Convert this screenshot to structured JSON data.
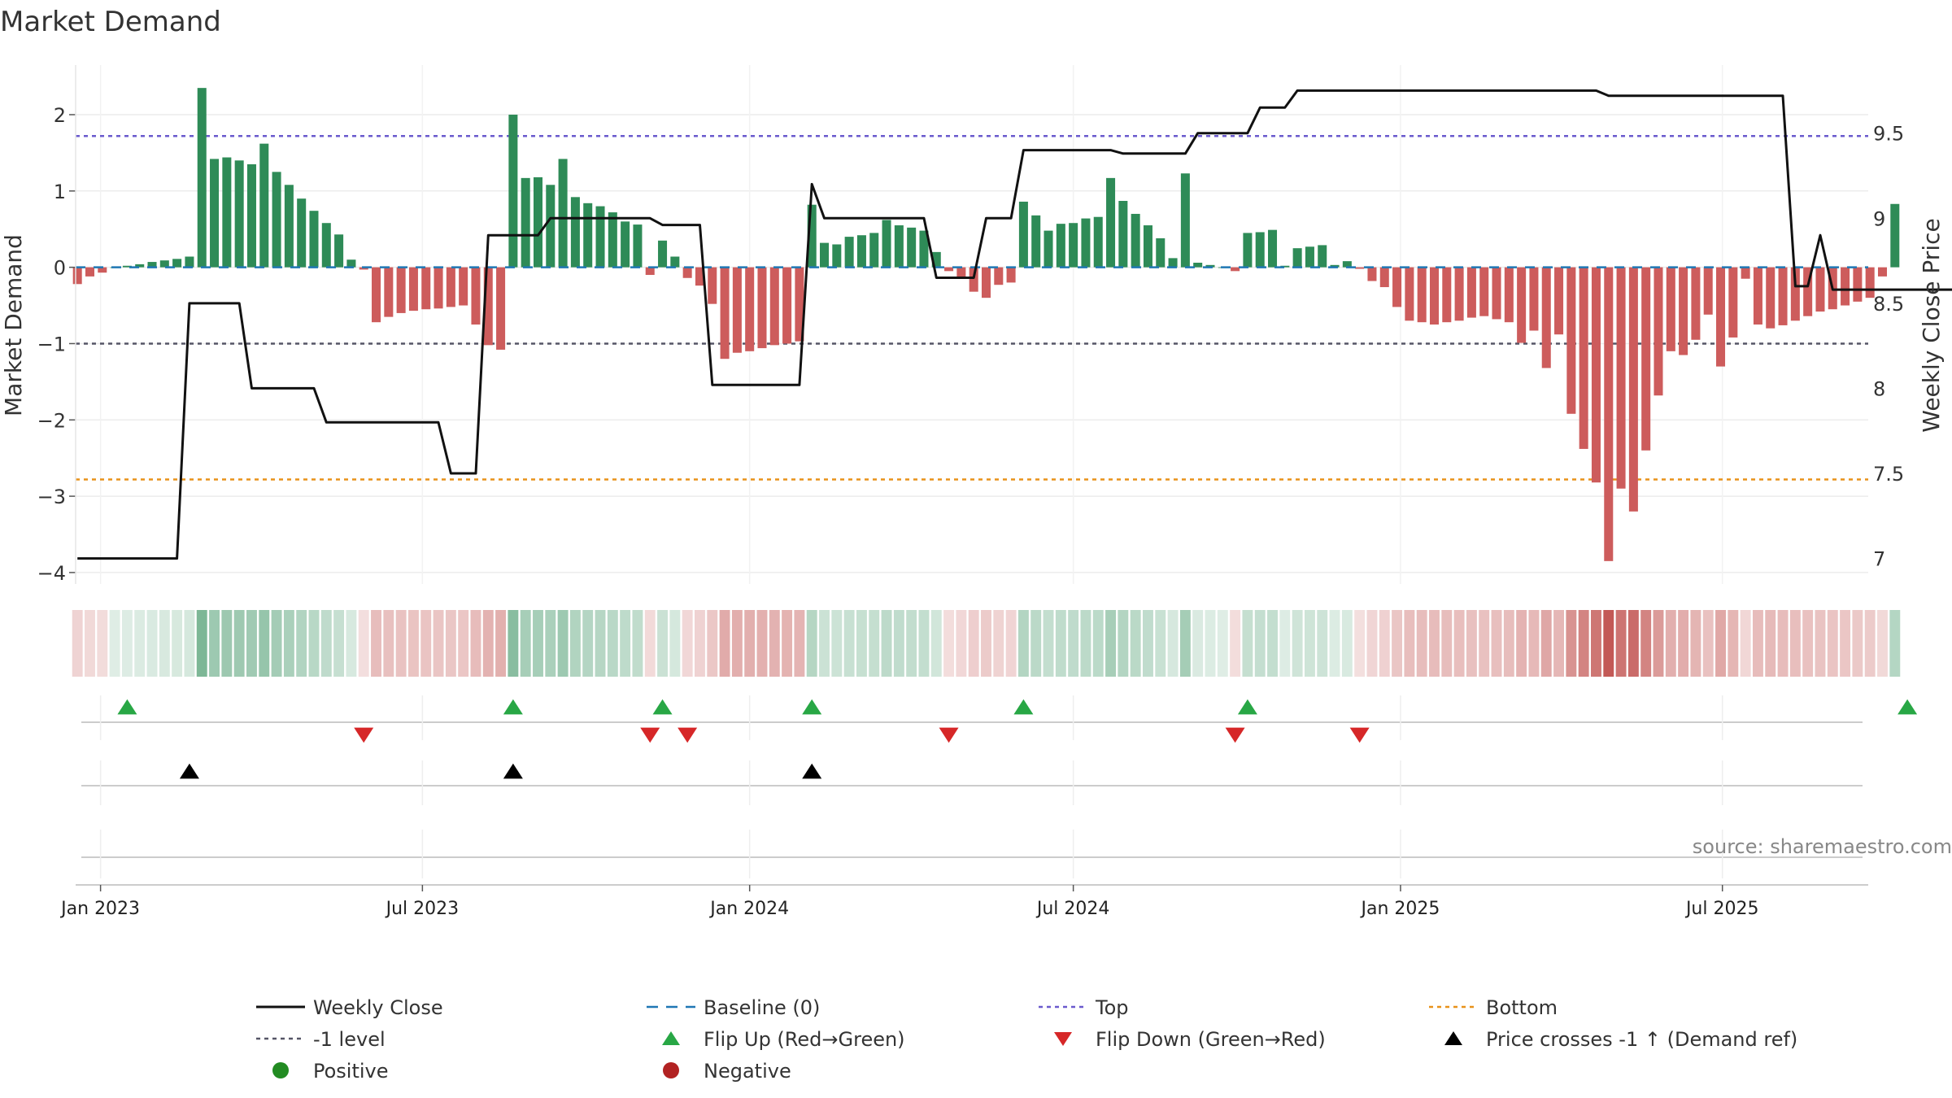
{
  "chart_data": {
    "type": "bar",
    "title": "Market Demand",
    "ylabel": "Market Demand",
    "y2label": "Weekly Close Price",
    "ylim": [
      -4.15,
      2.65
    ],
    "y2lim": [
      6.85,
      9.9
    ],
    "yticks": [
      -4,
      -3,
      -2,
      -1,
      0,
      1,
      2
    ],
    "y2ticks": [
      7,
      7.5,
      8,
      8.5,
      9,
      9.5
    ],
    "ytick_labels": [
      "−4",
      "−3",
      "−2",
      "−1",
      "0",
      "1",
      "2"
    ],
    "y2tick_labels": [
      "7",
      "7.5",
      "8",
      "8.5",
      "9",
      "9.5"
    ],
    "xlim": [
      "2022-12-18",
      "2025-09-21"
    ],
    "xticks": [
      "2023-01-01",
      "2023-07-01",
      "2024-01-01",
      "2024-07-01",
      "2025-01-01",
      "2025-07-01"
    ],
    "xtick_labels": [
      "Jan 2023",
      "Jul 2023",
      "Jan 2024",
      "Jul 2024",
      "Jan 2025",
      "Jul 2025"
    ],
    "start_date": "2022-12-19",
    "week_days": 7,
    "reference_lines": {
      "baseline": 0,
      "top": 1.72,
      "bottom": -2.78,
      "minus_one": -1
    },
    "demand": [
      -0.22,
      -0.12,
      -0.07,
      0.0,
      0.02,
      0.04,
      0.07,
      0.09,
      0.11,
      0.14,
      2.35,
      1.42,
      1.44,
      1.4,
      1.35,
      1.62,
      1.25,
      1.08,
      0.9,
      0.74,
      0.58,
      0.43,
      0.1,
      -0.03,
      -0.72,
      -0.65,
      -0.6,
      -0.57,
      -0.55,
      -0.54,
      -0.52,
      -0.5,
      -0.75,
      -1.02,
      -1.08,
      2.0,
      1.17,
      1.18,
      1.08,
      1.42,
      0.92,
      0.84,
      0.8,
      0.72,
      0.6,
      0.56,
      -0.1,
      0.35,
      0.14,
      -0.14,
      -0.24,
      -0.48,
      -1.2,
      -1.12,
      -1.1,
      -1.06,
      -1.02,
      -1.0,
      -0.97,
      0.82,
      0.32,
      0.3,
      0.4,
      0.42,
      0.45,
      0.62,
      0.55,
      0.52,
      0.48,
      0.2,
      -0.05,
      -0.14,
      -0.32,
      -0.4,
      -0.23,
      -0.2,
      0.86,
      0.68,
      0.48,
      0.57,
      0.58,
      0.64,
      0.66,
      1.17,
      0.87,
      0.7,
      0.55,
      0.38,
      0.12,
      1.23,
      0.06,
      0.03,
      0.0,
      -0.05,
      0.45,
      0.46,
      0.49,
      0.02,
      0.25,
      0.27,
      0.29,
      0.03,
      0.08,
      -0.02,
      -0.18,
      -0.26,
      -0.52,
      -0.7,
      -0.72,
      -0.75,
      -0.72,
      -0.7,
      -0.66,
      -0.64,
      -0.68,
      -0.72,
      -0.99,
      -0.83,
      -1.32,
      -0.88,
      -1.92,
      -2.38,
      -2.82,
      -3.85,
      -2.9,
      -3.2,
      -2.4,
      -1.68,
      -1.1,
      -1.15,
      -0.95,
      -0.62,
      -1.3,
      -0.92,
      -0.15,
      -0.75,
      -0.8,
      -0.76,
      -0.7,
      -0.64,
      -0.58,
      -0.55,
      -0.5,
      -0.45,
      -0.4,
      -0.12,
      0.83
    ],
    "close": [
      7.0,
      7.0,
      7.0,
      7.0,
      7.0,
      7.0,
      7.0,
      7.0,
      7.0,
      8.5,
      8.5,
      8.5,
      8.5,
      8.5,
      8.0,
      8.0,
      8.0,
      8.0,
      8.0,
      8.0,
      7.8,
      7.8,
      7.8,
      7.8,
      7.8,
      7.8,
      7.8,
      7.8,
      7.8,
      7.8,
      7.5,
      7.5,
      7.5,
      8.9,
      8.9,
      8.9,
      8.9,
      8.9,
      9.0,
      9.0,
      9.0,
      9.0,
      9.0,
      9.0,
      9.0,
      9.0,
      9.0,
      8.96,
      8.96,
      8.96,
      8.96,
      8.02,
      8.02,
      8.02,
      8.02,
      8.02,
      8.02,
      8.02,
      8.02,
      9.2,
      9.0,
      9.0,
      9.0,
      9.0,
      9.0,
      9.0,
      9.0,
      9.0,
      9.0,
      8.65,
      8.65,
      8.65,
      8.65,
      9.0,
      9.0,
      9.0,
      9.4,
      9.4,
      9.4,
      9.4,
      9.4,
      9.4,
      9.4,
      9.4,
      9.38,
      9.38,
      9.38,
      9.38,
      9.38,
      9.38,
      9.5,
      9.5,
      9.5,
      9.5,
      9.5,
      9.65,
      9.65,
      9.65,
      9.75,
      9.75,
      9.75,
      9.75,
      9.75,
      9.75,
      9.75,
      9.75,
      9.75,
      9.75,
      9.75,
      9.75,
      9.75,
      9.75,
      9.75,
      9.75,
      9.75,
      9.75,
      9.75,
      9.75,
      9.75,
      9.75,
      9.75,
      9.75,
      9.75,
      9.72,
      9.72,
      9.72,
      9.72,
      9.72,
      9.72,
      9.72,
      9.72,
      9.72,
      9.72,
      9.72,
      9.72,
      9.72,
      9.72,
      9.72,
      8.6,
      8.6,
      8.9,
      8.58,
      8.58,
      8.58,
      8.58,
      8.58,
      8.58,
      8.58,
      8.58,
      8.58,
      8.58,
      8.58,
      8.58,
      8.58
    ],
    "flip_up": [
      4,
      35,
      47,
      59,
      76,
      94,
      147
    ],
    "flip_down": [
      23,
      46,
      49,
      70,
      93,
      103
    ],
    "price_cross": [
      9,
      35,
      59
    ],
    "legend": [
      {
        "label": "Weekly Close",
        "marker": "line",
        "color": "#111111"
      },
      {
        "label": "Baseline (0)",
        "marker": "dash",
        "color": "#1f77b4"
      },
      {
        "label": "Top",
        "marker": "dot-line",
        "color": "#6a5acd"
      },
      {
        "label": "Bottom",
        "marker": "dot-line",
        "color": "#e8921a"
      },
      {
        "label": "-1 level",
        "marker": "dot-line",
        "color": "#555566"
      },
      {
        "label": "Flip Up (Red→Green)",
        "marker": "tri-up",
        "color": "#28a745"
      },
      {
        "label": "Flip Down (Green→Red)",
        "marker": "tri-down",
        "color": "#d62728"
      },
      {
        "label": "Price crosses -1 ↑ (Demand ref)",
        "marker": "tri-up",
        "color": "#000000"
      },
      {
        "label": "Positive",
        "marker": "circle",
        "color": "#228b22"
      },
      {
        "label": "Negative",
        "marker": "circle",
        "color": "#b22222"
      }
    ],
    "legend_placement": "bottom",
    "source": "source: sharemaestro.com",
    "colors": {
      "positive": "#2e8b57",
      "negative": "#cd5c5c",
      "close": "#111111"
    }
  }
}
